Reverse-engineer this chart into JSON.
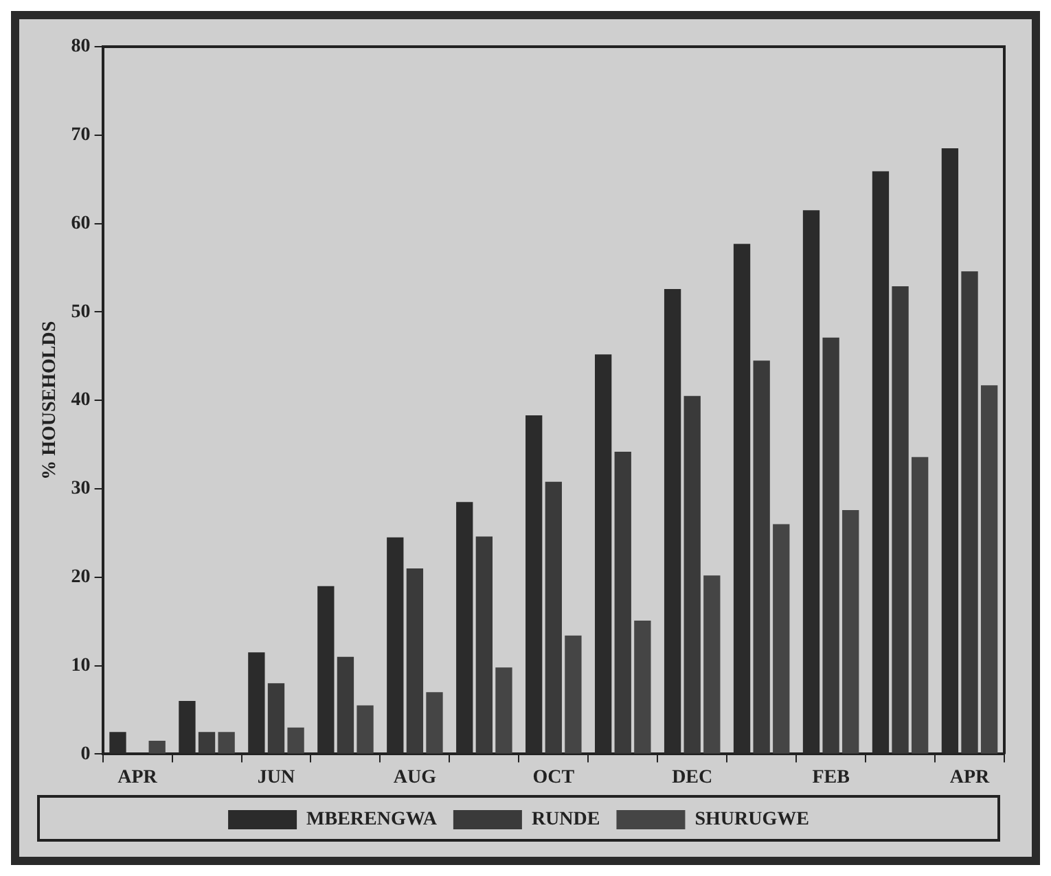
{
  "chart_data": {
    "type": "bar",
    "ylabel": "% HOUSEHOLDS",
    "categories": [
      "APR",
      null,
      "JUN",
      null,
      "AUG",
      null,
      "OCT",
      null,
      "DEC",
      null,
      "FEB",
      null,
      "APR"
    ],
    "series": [
      {
        "name": "MBERENGWA",
        "color": "#2b2b2b",
        "values": [
          2.5,
          6,
          11.5,
          19,
          24.5,
          28.5,
          38.3,
          45.2,
          52.6,
          57.7,
          61.5,
          65.9,
          68.5
        ]
      },
      {
        "name": "RUNDE",
        "color": "#3a3a3a",
        "values": [
          0,
          2.5,
          8,
          11,
          21,
          24.6,
          30.8,
          34.2,
          40.5,
          44.5,
          47.1,
          52.9,
          54.6
        ]
      },
      {
        "name": "SHURUGWE",
        "color": "#454545",
        "values": [
          1.5,
          2.5,
          3,
          5.5,
          7,
          9.8,
          13.4,
          15.1,
          20.2,
          26,
          27.6,
          33.6,
          41.7
        ]
      }
    ],
    "ylim": [
      0,
      80
    ],
    "yticks": [
      0,
      10,
      20,
      30,
      40,
      50,
      60,
      70,
      80
    ],
    "grid": false,
    "legend": "bottom"
  }
}
